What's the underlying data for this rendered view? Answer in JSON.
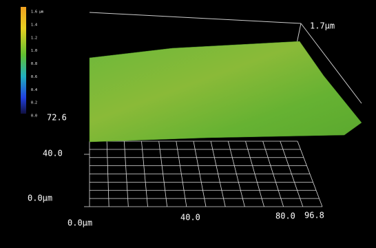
{
  "colorbar": {
    "labels": [
      "1.6 µm",
      "1.4",
      "1.2",
      "1.0",
      "0.8",
      "0.6",
      "0.4",
      "0.2",
      "0.0"
    ]
  },
  "axes": {
    "z_max": "1.7µm",
    "y_labels": [
      "72.6",
      "40.0",
      "0.0µm"
    ],
    "x_labels": [
      "0.0µm",
      "40.0",
      "80.0",
      "96.8"
    ]
  }
}
